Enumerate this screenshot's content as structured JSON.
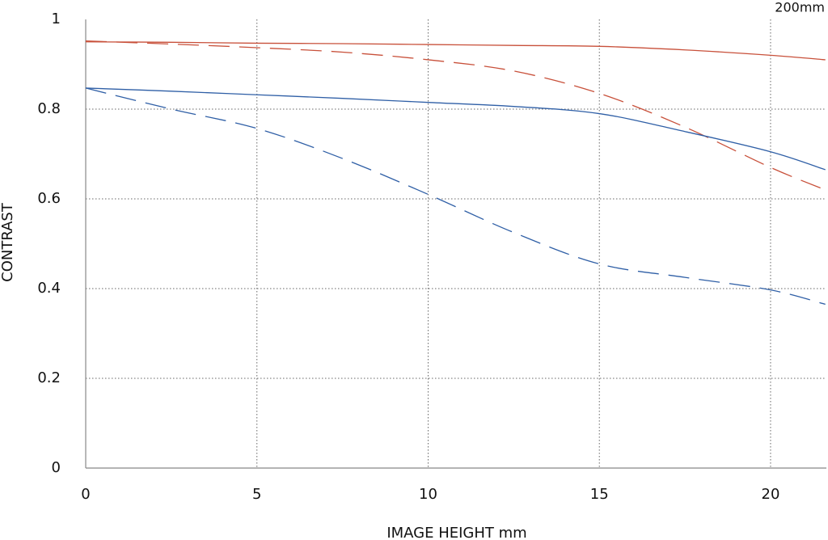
{
  "chart_data": {
    "type": "line",
    "title": "200mm",
    "x_label": "IMAGE HEIGHT  mm",
    "y_label": "CONTRAST",
    "x": [
      0,
      2.5,
      5,
      7.5,
      10,
      12.5,
      15,
      17.5,
      20,
      21.6
    ],
    "series": [
      {
        "color": "#c8503a",
        "dash": false,
        "values": [
          0.95,
          0.949,
          0.947,
          0.946,
          0.944,
          0.942,
          0.94,
          0.932,
          0.92,
          0.91
        ]
      },
      {
        "color": "#c8503a",
        "dash": true,
        "values": [
          0.952,
          0.945,
          0.937,
          0.927,
          0.91,
          0.885,
          0.835,
          0.76,
          0.67,
          0.62
        ]
      },
      {
        "color": "#2f5fa6",
        "dash": false,
        "values": [
          0.847,
          0.84,
          0.832,
          0.824,
          0.815,
          0.806,
          0.79,
          0.75,
          0.705,
          0.665
        ]
      },
      {
        "color": "#2f5fa6",
        "dash": true,
        "values": [
          0.847,
          0.8,
          0.757,
          0.69,
          0.61,
          0.525,
          0.455,
          0.425,
          0.397,
          0.365
        ]
      }
    ],
    "xlim": [
      0,
      21.63
    ],
    "ylim": [
      0,
      1
    ],
    "xticks": [
      0,
      5,
      10,
      15,
      20
    ],
    "yticks": [
      0,
      0.2,
      0.4,
      0.6,
      0.8,
      1
    ],
    "grid": true
  }
}
